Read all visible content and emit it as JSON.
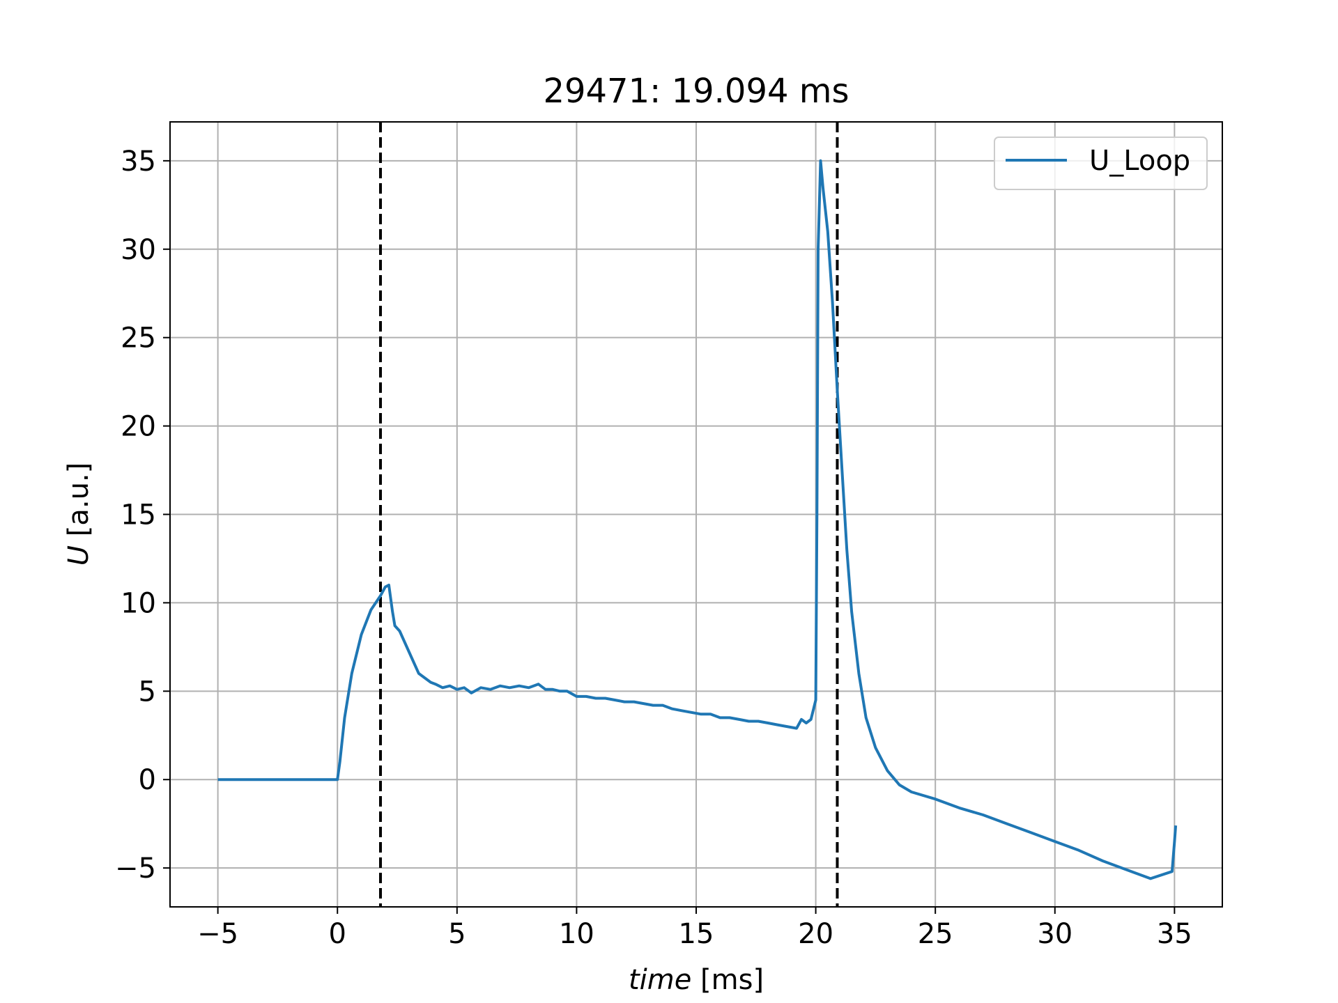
{
  "chart_data": {
    "type": "line",
    "title": "29471: 19.094 ms",
    "xlabel_var": "time",
    "xlabel_unit": " [ms]",
    "ylabel_var": "U",
    "ylabel_unit": " [a.u.]",
    "xlim": [
      -7,
      37
    ],
    "ylim": [
      -7.2,
      37.2
    ],
    "xticks": [
      -5,
      0,
      5,
      10,
      15,
      20,
      25,
      30,
      35
    ],
    "xtick_labels": [
      "−5",
      "0",
      "5",
      "10",
      "15",
      "20",
      "25",
      "30",
      "35"
    ],
    "yticks": [
      -5,
      0,
      5,
      10,
      15,
      20,
      25,
      30,
      35
    ],
    "ytick_labels": [
      "−5",
      "0",
      "5",
      "10",
      "15",
      "20",
      "25",
      "30",
      "35"
    ],
    "grid": true,
    "legend_placement": "top-right",
    "vlines": [
      1.8,
      20.9
    ],
    "series": [
      {
        "name": "U_Loop",
        "color": "#1f77b4",
        "x": [
          -5,
          0,
          0.1,
          0.3,
          0.6,
          1.0,
          1.4,
          1.8,
          2.0,
          2.15,
          2.3,
          2.4,
          2.6,
          3.0,
          3.4,
          3.6,
          3.9,
          4.1,
          4.4,
          4.7,
          5.0,
          5.3,
          5.6,
          6.0,
          6.4,
          6.8,
          7.2,
          7.6,
          8.0,
          8.4,
          8.7,
          9.0,
          9.3,
          9.6,
          10.0,
          10.4,
          10.8,
          11.2,
          11.6,
          12.0,
          12.4,
          12.8,
          13.2,
          13.6,
          14.0,
          14.4,
          14.8,
          15.2,
          15.6,
          16.0,
          16.4,
          16.8,
          17.2,
          17.6,
          18.0,
          18.4,
          18.8,
          19.2,
          19.4,
          19.6,
          19.8,
          20.0,
          20.05,
          20.1,
          20.2,
          20.3,
          20.5,
          20.7,
          20.9,
          21.1,
          21.3,
          21.5,
          21.8,
          22.1,
          22.5,
          23.0,
          23.5,
          24.0,
          25.0,
          26.0,
          27.0,
          28.0,
          29.0,
          30.0,
          31.0,
          32.0,
          33.0,
          34.0,
          34.9,
          35.0,
          35.05
        ],
        "y": [
          0,
          0,
          1.0,
          3.5,
          6.0,
          8.2,
          9.6,
          10.4,
          10.9,
          11.0,
          9.5,
          8.7,
          8.4,
          7.2,
          6.0,
          5.8,
          5.5,
          5.4,
          5.2,
          5.3,
          5.1,
          5.2,
          4.9,
          5.2,
          5.1,
          5.3,
          5.2,
          5.3,
          5.2,
          5.4,
          5.1,
          5.1,
          5.0,
          5.0,
          4.7,
          4.7,
          4.6,
          4.6,
          4.5,
          4.4,
          4.4,
          4.3,
          4.2,
          4.2,
          4.0,
          3.9,
          3.8,
          3.7,
          3.7,
          3.5,
          3.5,
          3.4,
          3.3,
          3.3,
          3.2,
          3.1,
          3.0,
          2.9,
          3.4,
          3.2,
          3.4,
          4.5,
          15.0,
          30.0,
          35.0,
          33.5,
          31.0,
          27.0,
          22.0,
          17.5,
          13.0,
          9.5,
          6.0,
          3.5,
          1.8,
          0.5,
          -0.3,
          -0.7,
          -1.1,
          -1.6,
          -2.0,
          -2.5,
          -3.0,
          -3.5,
          -4.0,
          -4.6,
          -5.1,
          -5.6,
          -5.2,
          -3.5,
          -2.6
        ]
      }
    ]
  }
}
